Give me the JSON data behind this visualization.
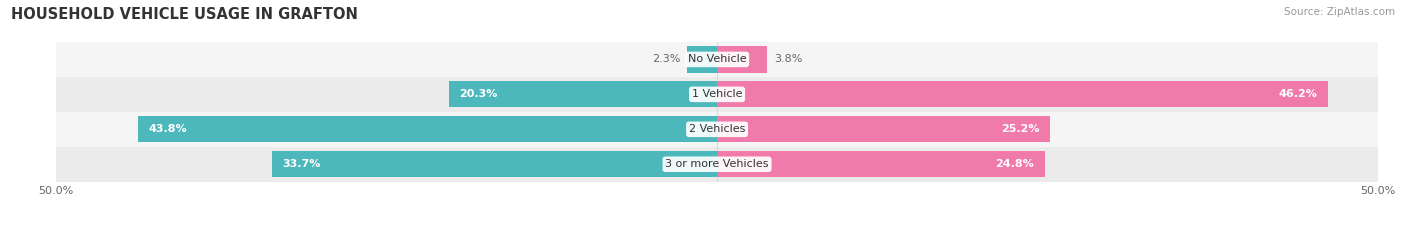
{
  "title": "HOUSEHOLD VEHICLE USAGE IN GRAFTON",
  "source": "Source: ZipAtlas.com",
  "categories": [
    "No Vehicle",
    "1 Vehicle",
    "2 Vehicles",
    "3 or more Vehicles"
  ],
  "owner_values": [
    2.3,
    20.3,
    43.8,
    33.7
  ],
  "renter_values": [
    3.8,
    46.2,
    25.2,
    24.8
  ],
  "owner_color": "#4db8bc",
  "renter_color": "#f07aaa",
  "row_bg_light": "#f5f5f5",
  "row_bg_dark": "#ebebeb",
  "xlim": 50.0,
  "title_fontsize": 10.5,
  "label_fontsize": 8.0,
  "category_fontsize": 8.0,
  "axis_fontsize": 8.0,
  "source_fontsize": 7.5
}
